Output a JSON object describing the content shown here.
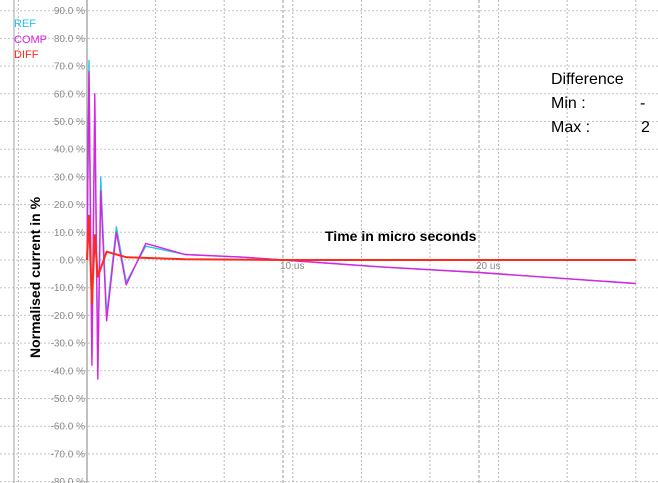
{
  "chart_data": {
    "type": "line",
    "ylabel": "Normalised current in %",
    "xlabel": "Time in micro seconds",
    "y_ticks": [
      "90.0 %",
      "80.0 %",
      "70.0 %",
      "60.0 %",
      "50.0 %",
      "40.0 %",
      "30.0 %",
      "20.0 %",
      "10.0 %",
      "0.0 %",
      "-10.0 %",
      "-20.0 %",
      "-30.0 %",
      "-40.0 %",
      "-50.0 %",
      "-60.0 %",
      "-70.0 %",
      "-80.0 %"
    ],
    "x_tick_labels": [
      {
        "x": 10,
        "label": "10 us"
      },
      {
        "x": 20,
        "label": "20 us"
      }
    ],
    "ylim": [
      -80,
      90
    ],
    "xlim": [
      -3.5,
      28
    ],
    "grid": true,
    "legend_position": "top-left",
    "series": [
      {
        "name": "REF",
        "color": "#22c8e8",
        "x": [
          0,
          0.1,
          0.25,
          0.4,
          0.55,
          0.7,
          1.0,
          1.5,
          2.0,
          3.0,
          5.0,
          8.0,
          10.0,
          15.0,
          20.0,
          25.0,
          28.0
        ],
        "y": [
          0,
          72,
          -35,
          55,
          -40,
          30,
          -20,
          12,
          -8,
          5,
          2,
          1,
          0,
          -2.5,
          -4.5,
          -7,
          -8.5
        ]
      },
      {
        "name": "COMP",
        "color": "#e020e0",
        "x": [
          0,
          0.1,
          0.25,
          0.4,
          0.55,
          0.7,
          1.0,
          1.5,
          2.0,
          3.0,
          5.0,
          8.0,
          10.0,
          15.0,
          20.0,
          25.0,
          28.0
        ],
        "y": [
          0,
          68,
          -38,
          60,
          -43,
          25,
          -22,
          10,
          -9,
          6,
          2,
          1,
          0,
          -2.5,
          -4.5,
          -7,
          -8.5
        ]
      },
      {
        "name": "DIFF",
        "color": "#ff2a1a",
        "x": [
          0,
          0.1,
          0.25,
          0.4,
          0.55,
          1.0,
          2.0,
          5.0,
          10.0,
          20.0,
          28.0
        ],
        "y": [
          0,
          16,
          -16,
          9,
          -6,
          3,
          1,
          0.3,
          0,
          0,
          0
        ]
      }
    ]
  },
  "stats": {
    "title": "Difference",
    "min_label": "Min :",
    "min_value": "-",
    "max_label": "Max :",
    "max_value": "2"
  }
}
